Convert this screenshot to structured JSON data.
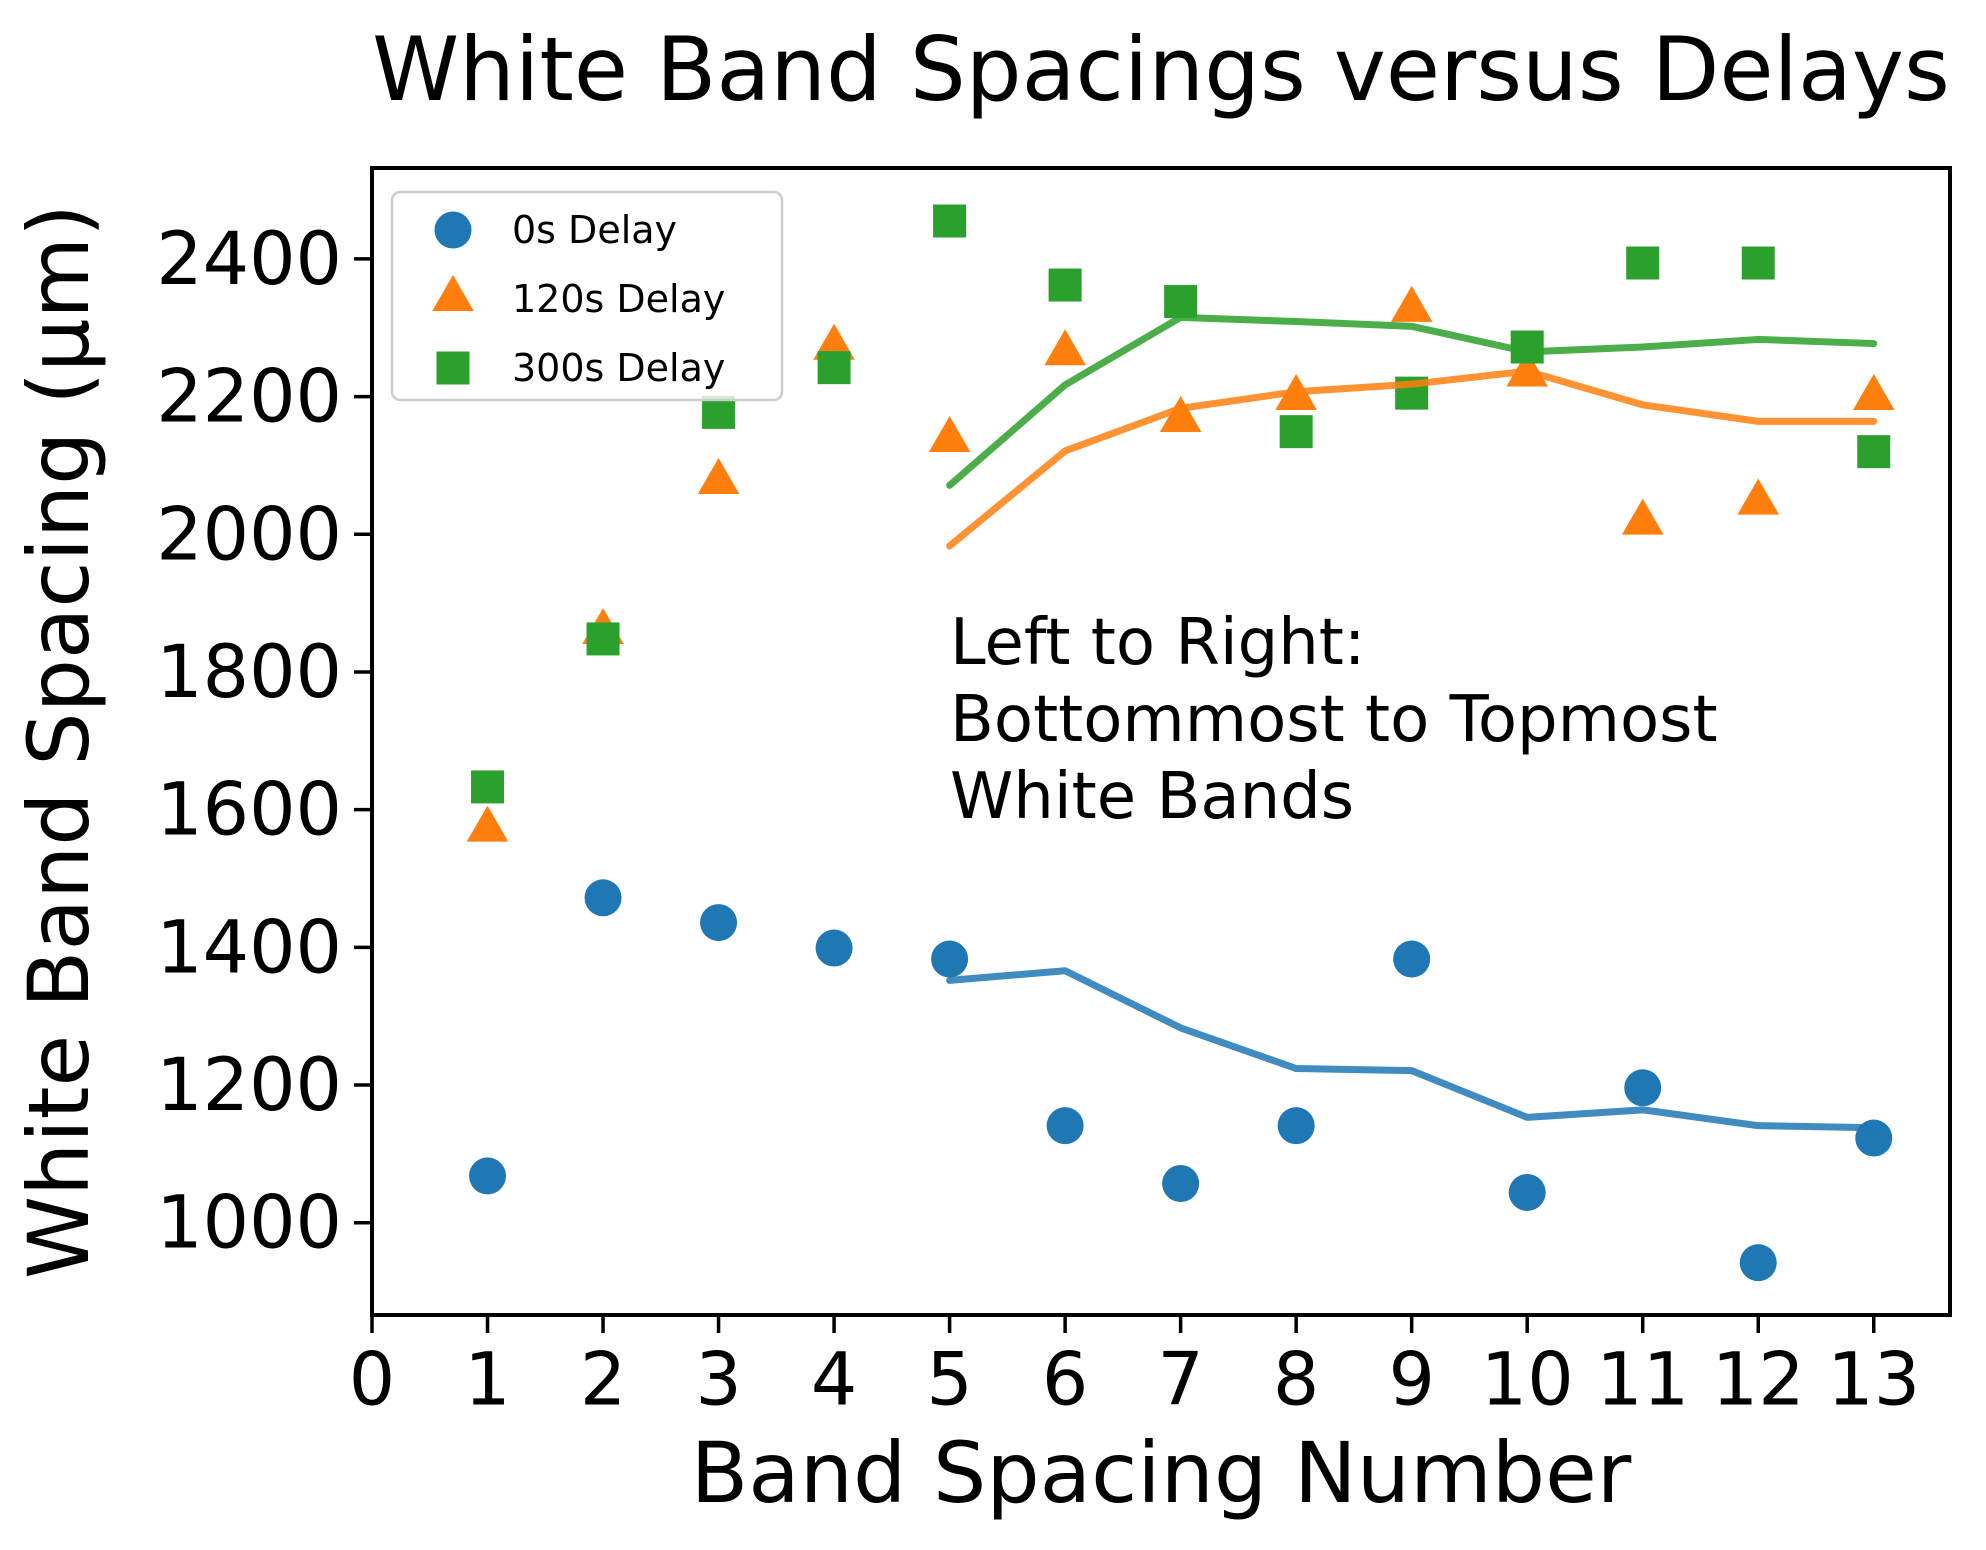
{
  "chart_data": {
    "type": "scatter",
    "title": "White Band Spacings versus Delays",
    "xlabel": "Band Spacing Number",
    "ylabel": "White Band Spacing (μm)",
    "xlim": [
      0,
      13.66
    ],
    "ylim": [
      866,
      2532
    ],
    "xticks": [
      0,
      1,
      2,
      3,
      4,
      5,
      6,
      7,
      8,
      9,
      10,
      11,
      12,
      13
    ],
    "yticks": [
      1000,
      1200,
      1400,
      1600,
      1800,
      2000,
      2200,
      2400
    ],
    "grid": false,
    "legend_position": "upper left",
    "annotation": {
      "lines": [
        "Left to Right:",
        "Bottommost to Topmost",
        "White Bands"
      ]
    },
    "series": [
      {
        "name": "0s Delay",
        "marker": "circle",
        "color": "#1f77b4",
        "x": [
          1,
          2,
          3,
          4,
          5,
          6,
          7,
          8,
          9,
          10,
          11,
          12,
          13
        ],
        "y": [
          1068,
          1472,
          1436,
          1399,
          1383,
          1141,
          1057,
          1141,
          1383,
          1044,
          1196,
          942,
          1123
        ],
        "trend": {
          "x": [
            5,
            6,
            7,
            8,
            9,
            10,
            11,
            12,
            13
          ],
          "y": [
            1352,
            1366,
            1283,
            1224,
            1221,
            1153,
            1164,
            1141,
            1138
          ]
        }
      },
      {
        "name": "120s Delay",
        "marker": "triangle",
        "color": "#ff7f0e",
        "x": [
          1,
          2,
          3,
          4,
          5,
          6,
          7,
          8,
          9,
          10,
          11,
          12,
          13
        ],
        "y": [
          1571,
          1858,
          2076,
          2271,
          2137,
          2263,
          2166,
          2198,
          2326,
          2232,
          2017,
          2046,
          2198
        ],
        "trend": {
          "x": [
            5,
            6,
            7,
            8,
            9,
            10,
            11,
            12,
            13
          ],
          "y": [
            1983,
            2121,
            2183,
            2207,
            2218,
            2237,
            2188,
            2164,
            2164
          ]
        }
      },
      {
        "name": "300s Delay",
        "marker": "square",
        "color": "#2ca02c",
        "x": [
          1,
          2,
          3,
          4,
          5,
          6,
          7,
          8,
          9,
          10,
          11,
          12,
          13
        ],
        "y": [
          1633,
          1848,
          2177,
          2242,
          2455,
          2362,
          2338,
          2149,
          2205,
          2272,
          2394,
          2394,
          2120
        ],
        "trend": {
          "x": [
            5,
            6,
            7,
            8,
            9,
            10,
            11,
            12,
            13
          ],
          "y": [
            2071,
            2217,
            2315,
            2309,
            2302,
            2265,
            2272,
            2283,
            2277
          ]
        }
      }
    ]
  }
}
